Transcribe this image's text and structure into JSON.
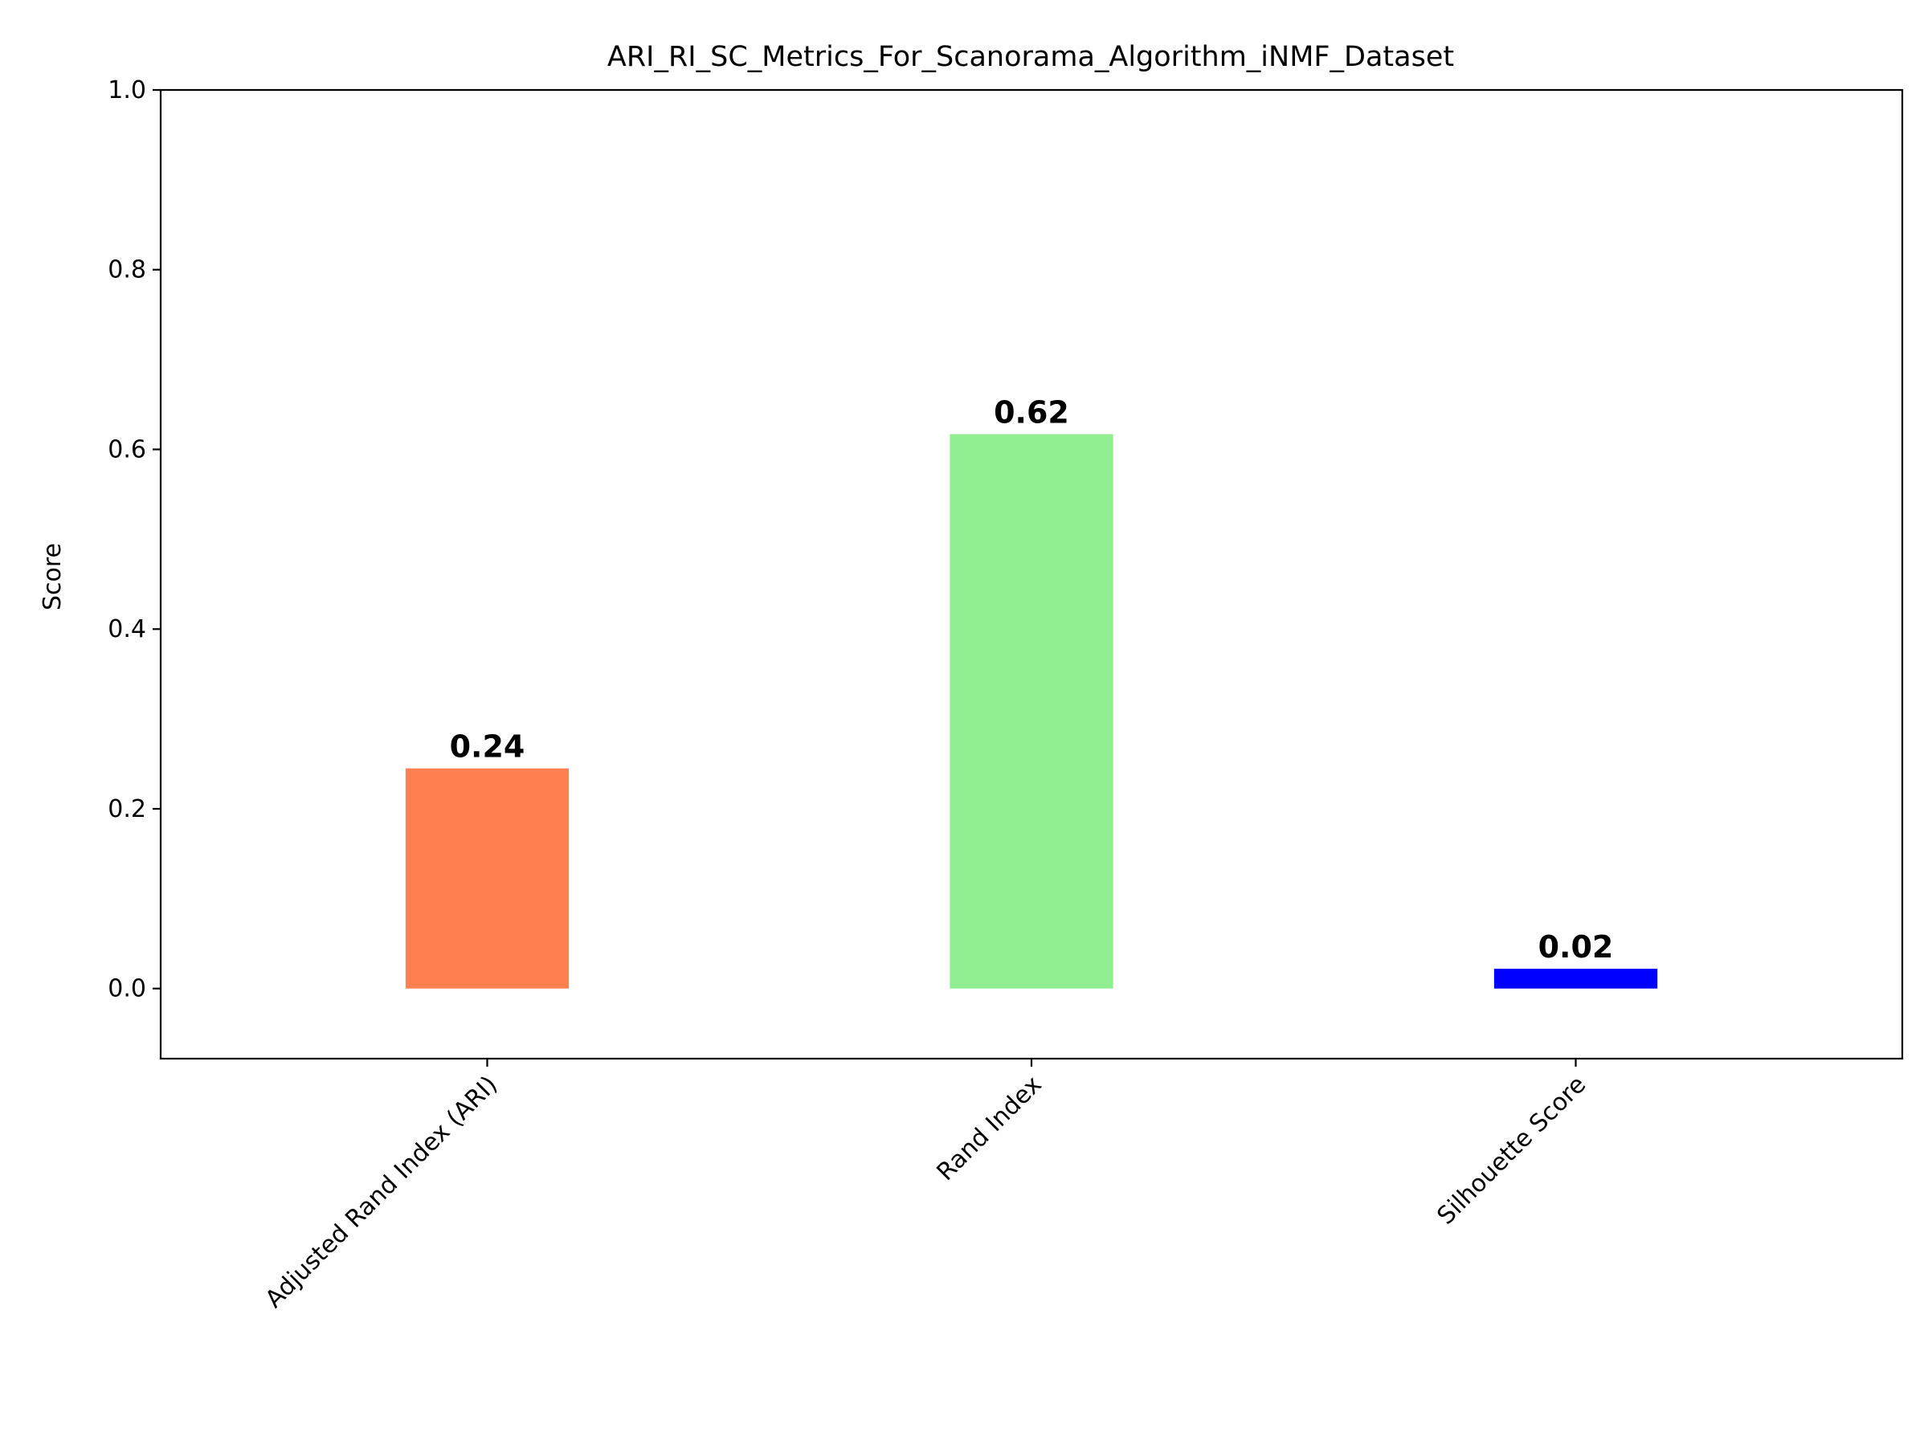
{
  "chart_data": {
    "type": "bar",
    "title": "ARI_RI_SC_Metrics_For_Scanorama_Algorithm_iNMF_Dataset",
    "xlabel": "",
    "ylabel": "Score",
    "categories": [
      "Adjusted Rand Index (ARI)",
      "Rand Index",
      "Silhouette Score"
    ],
    "values": [
      0.245,
      0.617,
      0.022
    ],
    "value_labels": [
      "0.24",
      "0.62",
      "0.02"
    ],
    "colors": [
      "#ff7f50",
      "#90ee90",
      "#0000ff"
    ],
    "ylim": [
      -0.078,
      1.0
    ],
    "yticks": [
      0.0,
      0.2,
      0.4,
      0.6,
      0.8,
      1.0
    ],
    "ytick_labels": [
      "0.0",
      "0.2",
      "0.4",
      "0.6",
      "0.8",
      "1.0"
    ],
    "grid": false,
    "legend": "none",
    "xtick_rotation_deg": 45
  }
}
